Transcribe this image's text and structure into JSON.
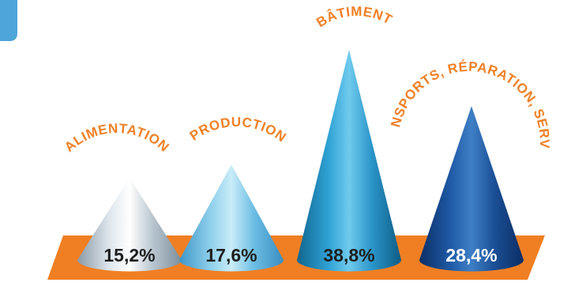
{
  "chart_data": {
    "type": "bar",
    "bar_shape": "cone",
    "categories": [
      "ALIMENTATION",
      "PRODUCTION",
      "BÂTIMENT",
      "TRANSPORTS, RÉPARATION, SERVICES"
    ],
    "values": [
      15.2,
      17.6,
      38.8,
      28.4
    ],
    "value_labels": [
      "15,2%",
      "17,6%",
      "38,8%",
      "28,4%"
    ],
    "unit": "%",
    "ylim": [
      0,
      38.8
    ],
    "grid": false,
    "legend": "none"
  },
  "colors": {
    "base_platform": "#f07f23",
    "category_label": "#f07f23",
    "value_label_dark": "#1e1e1e",
    "value_label_light": "#ffffff",
    "corner_tab": "#4ea5da",
    "cone_fills": [
      [
        "#8a9aa6",
        "#dde5ec",
        "#ffffff",
        "#b9c6d0",
        "#7d8e9b"
      ],
      [
        "#3f96c8",
        "#8fd0ec",
        "#c9ecf8",
        "#6bbde3",
        "#3a8dc1"
      ],
      [
        "#12658f",
        "#2ea2d4",
        "#6fcaed",
        "#2a95c9",
        "#0f5c85"
      ],
      [
        "#0a2f66",
        "#1f5aa6",
        "#3f7fc6",
        "#1b4f96",
        "#0b2d63"
      ]
    ]
  }
}
